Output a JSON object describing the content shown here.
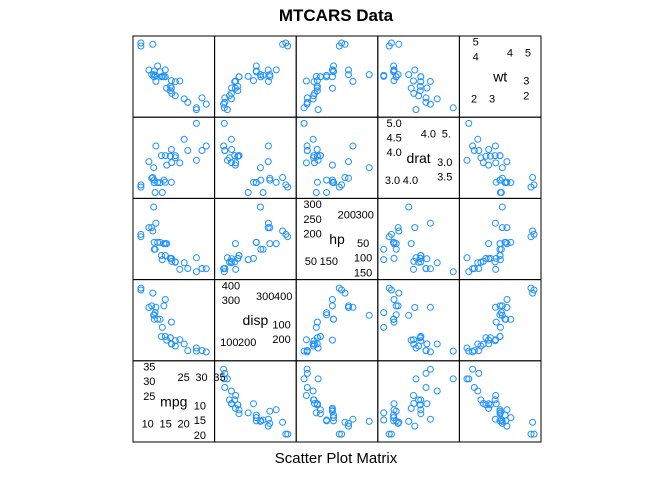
{
  "chart_data": {
    "type": "scatter-matrix",
    "title": "MTCARS Data",
    "xlabel": "Scatter Plot Matrix",
    "point_color": "#1E90FF",
    "variables": [
      {
        "name": "mpg",
        "range": [
          9.0,
          35.5
        ],
        "tick_labels": {
          "top_right": [
            "25",
            "30",
            "35"
          ],
          "bottom_left": [
            "10",
            "15",
            "20"
          ],
          "top": [
            "35",
            "30",
            "25"
          ],
          "bottom": [
            "10",
            "15",
            "20"
          ]
        }
      },
      {
        "name": "disp",
        "range": [
          40,
          500
        ],
        "tick_labels": {
          "top_right": [
            "300",
            "400"
          ],
          "bottom_left": [
            "100",
            "200"
          ],
          "top": [
            "400",
            "300"
          ],
          "bottom": [
            "100",
            "200"
          ]
        }
      },
      {
        "name": "hp",
        "range": [
          35,
          355
        ],
        "tick_labels": {
          "top_right": [
            "200",
            "300"
          ],
          "bottom_left": [
            "50",
            "150"
          ],
          "top": [
            "300",
            "250",
            "200"
          ],
          "bottom": [
            "50",
            "100",
            "150"
          ]
        }
      },
      {
        "name": "drat",
        "range": [
          2.7,
          5.0
        ],
        "tick_labels": {
          "top_right": [
            "4.0",
            "5."
          ],
          "bottom_left": [
            "3.0",
            "4.0"
          ],
          "top": [
            "5.0",
            "4.5",
            "4.0"
          ],
          "bottom": [
            "3.0",
            "3.5"
          ]
        }
      },
      {
        "name": "wt",
        "range": [
          1.3,
          5.6
        ],
        "tick_labels": {
          "top_right": [
            "4",
            "5"
          ],
          "bottom_left": [
            "2",
            "3"
          ],
          "top": [
            "5",
            "4"
          ],
          "bottom": [
            "3",
            "2"
          ]
        }
      }
    ],
    "observations": {
      "mpg": [
        21.0,
        21.0,
        22.8,
        21.4,
        18.7,
        18.1,
        14.3,
        24.4,
        22.8,
        19.2,
        17.8,
        16.4,
        17.3,
        15.2,
        10.4,
        10.4,
        14.7,
        32.4,
        30.4,
        33.9,
        21.5,
        15.5,
        15.2,
        13.3,
        19.2,
        27.3,
        26.0,
        30.4,
        15.8,
        19.7,
        15.0,
        21.4
      ],
      "disp": [
        160,
        160,
        108,
        258,
        360,
        225,
        360,
        146.7,
        140.8,
        167.6,
        167.6,
        275.8,
        275.8,
        275.8,
        472,
        460,
        440,
        78.7,
        75.7,
        71.1,
        120.1,
        318,
        304,
        350,
        400,
        79,
        120.3,
        95.1,
        351,
        145,
        301,
        121
      ],
      "hp": [
        110,
        110,
        93,
        110,
        175,
        105,
        245,
        62,
        95,
        123,
        123,
        180,
        180,
        180,
        205,
        215,
        230,
        66,
        52,
        65,
        97,
        150,
        150,
        245,
        175,
        66,
        91,
        113,
        264,
        175,
        335,
        109
      ],
      "drat": [
        3.9,
        3.9,
        3.85,
        3.08,
        3.15,
        2.76,
        3.21,
        3.69,
        3.92,
        3.92,
        3.92,
        3.07,
        3.07,
        3.07,
        2.93,
        3.0,
        3.23,
        4.08,
        4.93,
        4.22,
        3.7,
        2.76,
        3.15,
        3.73,
        3.08,
        4.08,
        4.43,
        3.77,
        4.22,
        3.62,
        3.54,
        4.11
      ],
      "wt": [
        2.62,
        2.875,
        2.32,
        3.215,
        3.44,
        3.46,
        3.57,
        3.19,
        3.15,
        3.44,
        3.44,
        4.07,
        3.73,
        3.78,
        5.25,
        5.424,
        5.345,
        2.2,
        1.615,
        1.835,
        2.465,
        3.52,
        3.435,
        3.84,
        3.845,
        1.935,
        2.14,
        1.513,
        3.17,
        2.77,
        3.57,
        2.78
      ]
    }
  }
}
